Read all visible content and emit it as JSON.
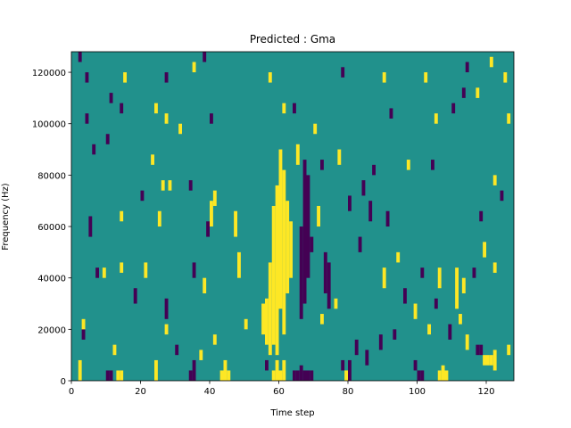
{
  "chart_data": {
    "type": "heatmap",
    "title": "Predicted : Gma",
    "xlabel": "Time step",
    "ylabel": "Frequency (Hz)",
    "xlim": [
      0,
      128
    ],
    "ylim": [
      0,
      128000
    ],
    "xticks": [
      0,
      20,
      40,
      60,
      80,
      100,
      120
    ],
    "yticks": [
      0,
      20000,
      40000,
      60000,
      80000,
      100000,
      120000
    ],
    "background": {
      "value": 0,
      "color": "#21918c"
    },
    "colormap": [
      {
        "value": -1,
        "color": "#440154"
      },
      {
        "value": 1,
        "color": "#fde725"
      }
    ],
    "cells": [
      {
        "x": 60,
        "y0": 28000,
        "y1": 90000,
        "value": 1
      },
      {
        "x": 61,
        "y0": 18000,
        "y1": 82000,
        "value": 1
      },
      {
        "x": 59,
        "y0": 10000,
        "y1": 76000,
        "value": 1
      },
      {
        "x": 62,
        "y0": 34000,
        "y1": 70000,
        "value": 1
      },
      {
        "x": 58,
        "y0": 14000,
        "y1": 68000,
        "value": 1
      },
      {
        "x": 57,
        "y0": 10000,
        "y1": 46000,
        "value": 1
      },
      {
        "x": 56,
        "y0": 14000,
        "y1": 32000,
        "value": 1
      },
      {
        "x": 55,
        "y0": 18000,
        "y1": 30000,
        "value": 1
      },
      {
        "x": 63,
        "y0": 40000,
        "y1": 62000,
        "value": 1
      },
      {
        "x": 67,
        "y0": 30000,
        "y1": 86000,
        "value": -1
      },
      {
        "x": 68,
        "y0": 40000,
        "y1": 80000,
        "value": -1
      },
      {
        "x": 66,
        "y0": 24000,
        "y1": 60000,
        "value": -1
      },
      {
        "x": 73,
        "y0": 34000,
        "y1": 50000,
        "value": -1
      },
      {
        "x": 74,
        "y0": 28000,
        "y1": 46000,
        "value": -1
      },
      {
        "x": 69,
        "y0": 50000,
        "y1": 56000,
        "value": -1
      },
      {
        "x": 10,
        "y0": 0,
        "y1": 4000,
        "value": -1
      },
      {
        "x": 11,
        "y0": 0,
        "y1": 4000,
        "value": -1
      },
      {
        "x": 13,
        "y0": 0,
        "y1": 4000,
        "value": 1
      },
      {
        "x": 14,
        "y0": 0,
        "y1": 4000,
        "value": 1
      },
      {
        "x": 24,
        "y0": 0,
        "y1": 8000,
        "value": 1
      },
      {
        "x": 34,
        "y0": 0,
        "y1": 4000,
        "value": -1
      },
      {
        "x": 35,
        "y0": 0,
        "y1": 8000,
        "value": -1
      },
      {
        "x": 43,
        "y0": 0,
        "y1": 4000,
        "value": 1
      },
      {
        "x": 44,
        "y0": 0,
        "y1": 8000,
        "value": 1
      },
      {
        "x": 45,
        "y0": 0,
        "y1": 4000,
        "value": 1
      },
      {
        "x": 56,
        "y0": 4000,
        "y1": 8000,
        "value": -1
      },
      {
        "x": 58,
        "y0": 0,
        "y1": 4000,
        "value": 1
      },
      {
        "x": 59,
        "y0": 0,
        "y1": 8000,
        "value": 1
      },
      {
        "x": 60,
        "y0": 0,
        "y1": 4000,
        "value": 1
      },
      {
        "x": 61,
        "y0": 0,
        "y1": 8000,
        "value": 1
      },
      {
        "x": 64,
        "y0": 0,
        "y1": 4000,
        "value": -1
      },
      {
        "x": 65,
        "y0": 0,
        "y1": 4000,
        "value": -1
      },
      {
        "x": 66,
        "y0": 0,
        "y1": 6000,
        "value": -1
      },
      {
        "x": 67,
        "y0": 0,
        "y1": 4000,
        "value": -1
      },
      {
        "x": 68,
        "y0": 0,
        "y1": 4000,
        "value": -1
      },
      {
        "x": 69,
        "y0": 0,
        "y1": 4000,
        "value": -1
      },
      {
        "x": 78,
        "y0": 4000,
        "y1": 8000,
        "value": -1
      },
      {
        "x": 79,
        "y0": 0,
        "y1": 4000,
        "value": 1
      },
      {
        "x": 80,
        "y0": 0,
        "y1": 8000,
        "value": -1
      },
      {
        "x": 99,
        "y0": 4000,
        "y1": 8000,
        "value": -1
      },
      {
        "x": 100,
        "y0": 0,
        "y1": 4000,
        "value": -1
      },
      {
        "x": 101,
        "y0": 0,
        "y1": 4000,
        "value": -1
      },
      {
        "x": 106,
        "y0": 0,
        "y1": 4000,
        "value": 1
      },
      {
        "x": 107,
        "y0": 0,
        "y1": 6000,
        "value": 1
      },
      {
        "x": 108,
        "y0": 0,
        "y1": 4000,
        "value": 1
      },
      {
        "x": 119,
        "y0": 6000,
        "y1": 10000,
        "value": 1
      },
      {
        "x": 120,
        "y0": 6000,
        "y1": 10000,
        "value": 1
      },
      {
        "x": 121,
        "y0": 6000,
        "y1": 10000,
        "value": 1
      },
      {
        "x": 122,
        "y0": 4000,
        "y1": 12000,
        "value": 1
      },
      {
        "x": 118,
        "y0": 10000,
        "y1": 14000,
        "value": -1
      },
      {
        "x": 117,
        "y0": 10000,
        "y1": 14000,
        "value": -1
      },
      {
        "x": 2,
        "y0": 0,
        "y1": 8000,
        "value": 1
      },
      {
        "x": 3,
        "y0": 16000,
        "y1": 20000,
        "value": -1
      },
      {
        "x": 3,
        "y0": 20000,
        "y1": 24000,
        "value": 1
      },
      {
        "x": 12,
        "y0": 10000,
        "y1": 14000,
        "value": 1
      },
      {
        "x": 27,
        "y0": 24000,
        "y1": 32000,
        "value": -1
      },
      {
        "x": 27,
        "y0": 18000,
        "y1": 22000,
        "value": 1
      },
      {
        "x": 30,
        "y0": 10000,
        "y1": 14000,
        "value": -1
      },
      {
        "x": 37,
        "y0": 8000,
        "y1": 12000,
        "value": 1
      },
      {
        "x": 41,
        "y0": 14000,
        "y1": 18000,
        "value": 1
      },
      {
        "x": 50,
        "y0": 20000,
        "y1": 24000,
        "value": 1
      },
      {
        "x": 48,
        "y0": 40000,
        "y1": 50000,
        "value": 1
      },
      {
        "x": 47,
        "y0": 56000,
        "y1": 66000,
        "value": 1
      },
      {
        "x": 39,
        "y0": 56000,
        "y1": 62000,
        "value": -1
      },
      {
        "x": 40,
        "y0": 60000,
        "y1": 70000,
        "value": 1
      },
      {
        "x": 41,
        "y0": 68000,
        "y1": 74000,
        "value": 1
      },
      {
        "x": 35,
        "y0": 40000,
        "y1": 46000,
        "value": -1
      },
      {
        "x": 38,
        "y0": 34000,
        "y1": 40000,
        "value": 1
      },
      {
        "x": 21,
        "y0": 40000,
        "y1": 46000,
        "value": 1
      },
      {
        "x": 18,
        "y0": 30000,
        "y1": 36000,
        "value": -1
      },
      {
        "x": 14,
        "y0": 42000,
        "y1": 46000,
        "value": 1
      },
      {
        "x": 5,
        "y0": 56000,
        "y1": 64000,
        "value": -1
      },
      {
        "x": 7,
        "y0": 40000,
        "y1": 44000,
        "value": -1
      },
      {
        "x": 9,
        "y0": 40000,
        "y1": 44000,
        "value": 1
      },
      {
        "x": 14,
        "y0": 62000,
        "y1": 66000,
        "value": 1
      },
      {
        "x": 20,
        "y0": 70000,
        "y1": 74000,
        "value": -1
      },
      {
        "x": 25,
        "y0": 60000,
        "y1": 66000,
        "value": 1
      },
      {
        "x": 26,
        "y0": 74000,
        "y1": 78000,
        "value": 1
      },
      {
        "x": 28,
        "y0": 74000,
        "y1": 78000,
        "value": 1
      },
      {
        "x": 34,
        "y0": 74000,
        "y1": 78000,
        "value": -1
      },
      {
        "x": 23,
        "y0": 84000,
        "y1": 88000,
        "value": 1
      },
      {
        "x": 10,
        "y0": 92000,
        "y1": 96000,
        "value": -1
      },
      {
        "x": 6,
        "y0": 88000,
        "y1": 92000,
        "value": -1
      },
      {
        "x": 4,
        "y0": 100000,
        "y1": 104000,
        "value": -1
      },
      {
        "x": 11,
        "y0": 108000,
        "y1": 112000,
        "value": -1
      },
      {
        "x": 14,
        "y0": 104000,
        "y1": 108000,
        "value": -1
      },
      {
        "x": 24,
        "y0": 104000,
        "y1": 108000,
        "value": 1
      },
      {
        "x": 27,
        "y0": 100000,
        "y1": 104000,
        "value": 1
      },
      {
        "x": 31,
        "y0": 96000,
        "y1": 100000,
        "value": 1
      },
      {
        "x": 40,
        "y0": 100000,
        "y1": 104000,
        "value": -1
      },
      {
        "x": 2,
        "y0": 124000,
        "y1": 128000,
        "value": -1
      },
      {
        "x": 4,
        "y0": 116000,
        "y1": 120000,
        "value": -1
      },
      {
        "x": 15,
        "y0": 116000,
        "y1": 120000,
        "value": 1
      },
      {
        "x": 27,
        "y0": 116000,
        "y1": 120000,
        "value": -1
      },
      {
        "x": 35,
        "y0": 120000,
        "y1": 124000,
        "value": 1
      },
      {
        "x": 38,
        "y0": 124000,
        "y1": 128000,
        "value": -1
      },
      {
        "x": 57,
        "y0": 116000,
        "y1": 120000,
        "value": 1
      },
      {
        "x": 61,
        "y0": 104000,
        "y1": 108000,
        "value": 1
      },
      {
        "x": 64,
        "y0": 104000,
        "y1": 108000,
        "value": -1
      },
      {
        "x": 70,
        "y0": 96000,
        "y1": 100000,
        "value": 1
      },
      {
        "x": 77,
        "y0": 84000,
        "y1": 90000,
        "value": 1
      },
      {
        "x": 80,
        "y0": 66000,
        "y1": 72000,
        "value": -1
      },
      {
        "x": 84,
        "y0": 72000,
        "y1": 78000,
        "value": -1
      },
      {
        "x": 86,
        "y0": 62000,
        "y1": 70000,
        "value": -1
      },
      {
        "x": 83,
        "y0": 50000,
        "y1": 56000,
        "value": -1
      },
      {
        "x": 87,
        "y0": 80000,
        "y1": 84000,
        "value": -1
      },
      {
        "x": 91,
        "y0": 60000,
        "y1": 66000,
        "value": -1
      },
      {
        "x": 90,
        "y0": 36000,
        "y1": 44000,
        "value": 1
      },
      {
        "x": 94,
        "y0": 46000,
        "y1": 50000,
        "value": 1
      },
      {
        "x": 96,
        "y0": 30000,
        "y1": 36000,
        "value": -1
      },
      {
        "x": 99,
        "y0": 24000,
        "y1": 30000,
        "value": 1
      },
      {
        "x": 101,
        "y0": 40000,
        "y1": 44000,
        "value": -1
      },
      {
        "x": 105,
        "y0": 28000,
        "y1": 32000,
        "value": -1
      },
      {
        "x": 106,
        "y0": 36000,
        "y1": 44000,
        "value": 1
      },
      {
        "x": 111,
        "y0": 28000,
        "y1": 44000,
        "value": 1
      },
      {
        "x": 113,
        "y0": 34000,
        "y1": 40000,
        "value": 1
      },
      {
        "x": 112,
        "y0": 22000,
        "y1": 26000,
        "value": 1
      },
      {
        "x": 116,
        "y0": 40000,
        "y1": 44000,
        "value": -1
      },
      {
        "x": 119,
        "y0": 48000,
        "y1": 54000,
        "value": 1
      },
      {
        "x": 122,
        "y0": 42000,
        "y1": 46000,
        "value": 1
      },
      {
        "x": 118,
        "y0": 62000,
        "y1": 66000,
        "value": -1
      },
      {
        "x": 124,
        "y0": 70000,
        "y1": 74000,
        "value": -1
      },
      {
        "x": 122,
        "y0": 76000,
        "y1": 80000,
        "value": 1
      },
      {
        "x": 104,
        "y0": 82000,
        "y1": 86000,
        "value": -1
      },
      {
        "x": 97,
        "y0": 82000,
        "y1": 86000,
        "value": 1
      },
      {
        "x": 92,
        "y0": 102000,
        "y1": 106000,
        "value": -1
      },
      {
        "x": 105,
        "y0": 100000,
        "y1": 104000,
        "value": 1
      },
      {
        "x": 110,
        "y0": 104000,
        "y1": 108000,
        "value": -1
      },
      {
        "x": 113,
        "y0": 110000,
        "y1": 114000,
        "value": -1
      },
      {
        "x": 117,
        "y0": 110000,
        "y1": 114000,
        "value": 1
      },
      {
        "x": 121,
        "y0": 122000,
        "y1": 126000,
        "value": 1
      },
      {
        "x": 114,
        "y0": 120000,
        "y1": 124000,
        "value": -1
      },
      {
        "x": 125,
        "y0": 116000,
        "y1": 120000,
        "value": 1
      },
      {
        "x": 126,
        "y0": 100000,
        "y1": 104000,
        "value": 1
      },
      {
        "x": 102,
        "y0": 116000,
        "y1": 120000,
        "value": 1
      },
      {
        "x": 90,
        "y0": 116000,
        "y1": 120000,
        "value": 1
      },
      {
        "x": 78,
        "y0": 118000,
        "y1": 122000,
        "value": -1
      },
      {
        "x": 72,
        "y0": 82000,
        "y1": 86000,
        "value": -1
      },
      {
        "x": 65,
        "y0": 84000,
        "y1": 92000,
        "value": 1
      },
      {
        "x": 71,
        "y0": 60000,
        "y1": 68000,
        "value": 1
      },
      {
        "x": 72,
        "y0": 22000,
        "y1": 26000,
        "value": 1
      },
      {
        "x": 76,
        "y0": 28000,
        "y1": 32000,
        "value": 1
      },
      {
        "x": 82,
        "y0": 10000,
        "y1": 16000,
        "value": -1
      },
      {
        "x": 85,
        "y0": 6000,
        "y1": 12000,
        "value": -1
      },
      {
        "x": 89,
        "y0": 12000,
        "y1": 18000,
        "value": -1
      },
      {
        "x": 93,
        "y0": 16000,
        "y1": 20000,
        "value": -1
      },
      {
        "x": 103,
        "y0": 18000,
        "y1": 22000,
        "value": 1
      },
      {
        "x": 109,
        "y0": 16000,
        "y1": 22000,
        "value": -1
      },
      {
        "x": 114,
        "y0": 12000,
        "y1": 18000,
        "value": 1
      },
      {
        "x": 126,
        "y0": 10000,
        "y1": 14000,
        "value": 1
      }
    ]
  }
}
